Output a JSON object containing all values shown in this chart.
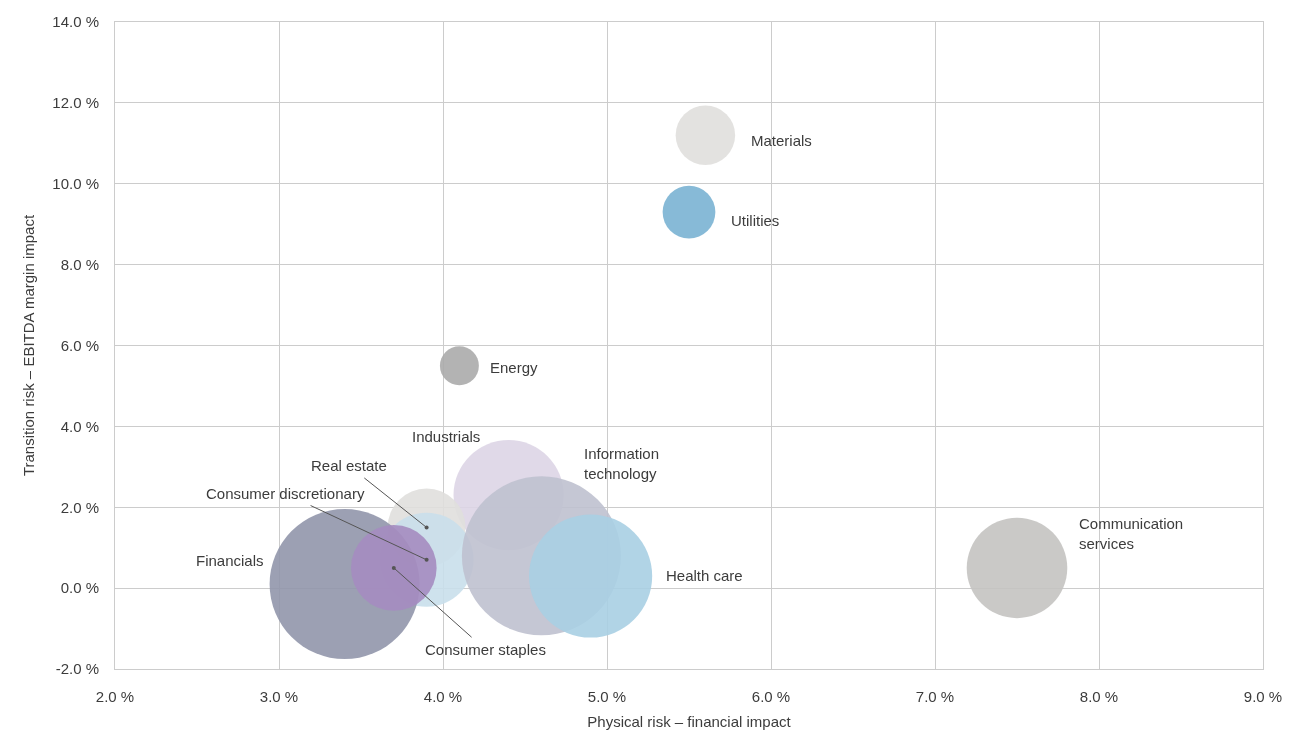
{
  "chart_data": {
    "type": "bubble",
    "xlabel": "Physical risk – financial impact",
    "ylabel": "Transition risk – EBITDA margin impact",
    "grid": true,
    "xlim": [
      2,
      9
    ],
    "xticks": [
      {
        "value": 2,
        "label": "2.0 %"
      },
      {
        "value": 3,
        "label": "3.0 %"
      },
      {
        "value": 4,
        "label": "4.0 %"
      },
      {
        "value": 5,
        "label": "5.0 %"
      },
      {
        "value": 6,
        "label": "6.0 %"
      },
      {
        "value": 7,
        "label": "7.0 %"
      },
      {
        "value": 8,
        "label": "8.0 %"
      },
      {
        "value": 9,
        "label": "9.0 %"
      }
    ],
    "ylim": [
      -2,
      14
    ],
    "yticks": [
      {
        "value": -2,
        "label": "-2.0 %"
      },
      {
        "value": 0,
        "label": "0.0 %"
      },
      {
        "value": 2,
        "label": "2.0 %"
      },
      {
        "value": 4,
        "label": "4.0 %"
      },
      {
        "value": 6,
        "label": "6.0 %"
      },
      {
        "value": 8,
        "label": "8.0 %"
      },
      {
        "value": 10,
        "label": "10.0 %"
      },
      {
        "value": 12,
        "label": "12.0 %"
      },
      {
        "value": 14,
        "label": "14.0 %"
      }
    ],
    "series": [
      {
        "name": "Materials",
        "color": "#e0dfdd",
        "x": [
          5.6
        ],
        "values": [
          11.2
        ],
        "sizes": [
          0.14
        ]
      },
      {
        "name": "Utilities",
        "color": "#7ab3d3",
        "x": [
          5.5
        ],
        "values": [
          9.3
        ],
        "sizes": [
          0.11
        ]
      },
      {
        "name": "Energy",
        "color": "#ababab",
        "x": [
          4.1
        ],
        "values": [
          5.5
        ],
        "sizes": [
          0.06
        ]
      },
      {
        "name": "Industrials",
        "color": "#ddd5e6",
        "x": [
          4.4
        ],
        "values": [
          2.3
        ],
        "sizes": [
          0.48
        ]
      },
      {
        "name": "Real estate",
        "color": "#e0dfdd",
        "x": [
          3.9
        ],
        "values": [
          1.5
        ],
        "sizes": [
          0.24
        ]
      },
      {
        "name": "Consumer discretionary",
        "color": "#c9dfeb",
        "x": [
          3.9
        ],
        "values": [
          0.7
        ],
        "sizes": [
          0.35
        ]
      },
      {
        "name": "Information technology",
        "color": "#bfc1cf",
        "x": [
          4.6
        ],
        "values": [
          0.8
        ],
        "sizes": [
          1
        ]
      },
      {
        "name": "Communication services",
        "color": "#c4c3c1",
        "x": [
          7.5
        ],
        "values": [
          0.5
        ],
        "sizes": [
          0.4
        ]
      },
      {
        "name": "Financials",
        "color": "#9196ab",
        "x": [
          3.4
        ],
        "values": [
          0.1
        ],
        "sizes": [
          0.89
        ]
      },
      {
        "name": "Consumer staples",
        "color": "#a58cc0",
        "x": [
          3.7
        ],
        "values": [
          0.5
        ],
        "sizes": [
          0.29
        ]
      },
      {
        "name": "Health care",
        "color": "#a9cfe3",
        "x": [
          4.9
        ],
        "values": [
          0.3
        ],
        "sizes": [
          0.6
        ]
      }
    ]
  }
}
